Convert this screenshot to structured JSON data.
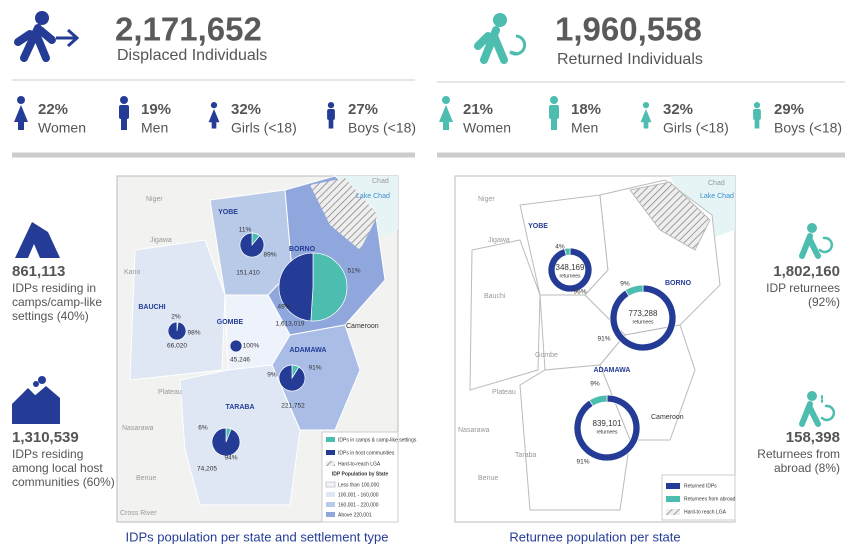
{
  "idps": {
    "total": "2,171,652",
    "label": "Displaced Individuals",
    "breakdown": [
      {
        "pct": "22%",
        "group": "Women"
      },
      {
        "pct": "19%",
        "group": "Men"
      },
      {
        "pct": "32%",
        "group": "Girls (<18)"
      },
      {
        "pct": "27%",
        "group": "Boys (<18)"
      }
    ],
    "camps": {
      "value": "861,113",
      "lines": [
        "IDPs residing in",
        "camps/camp-like",
        "settings (40%)"
      ]
    },
    "host": {
      "value": "1,310,539",
      "lines": [
        "IDPs residing",
        "among local host",
        "communities (60%)"
      ]
    },
    "map": {
      "caption": "IDPs population per state and settlement type",
      "states": [
        {
          "name": "YOBE",
          "total": "151,410",
          "values": [
            11,
            89
          ],
          "value_labels": [
            "11%",
            "89%"
          ]
        },
        {
          "name": "BORNO",
          "total": "1,613,019",
          "values": [
            51,
            49
          ],
          "value_labels": [
            "51%",
            "49%"
          ]
        },
        {
          "name": "BAUCHI",
          "total": "66,020",
          "values": [
            2,
            98
          ],
          "value_labels": [
            "2%",
            "98%"
          ]
        },
        {
          "name": "GOMBE",
          "total": "45,246",
          "values": [
            0,
            100
          ],
          "value_labels": [
            null,
            "100%"
          ]
        },
        {
          "name": "ADAMAWA",
          "total": "221,752",
          "values": [
            9,
            91
          ],
          "value_labels": [
            "9%",
            "91%"
          ]
        },
        {
          "name": "TARABA",
          "total": "74,205",
          "values": [
            6,
            94
          ],
          "value_labels": [
            "6%",
            "94%"
          ]
        }
      ],
      "places": [
        "Chad",
        "Lake Chad",
        "Niger",
        "Cameroon",
        "Jigawa",
        "Kano",
        "Plateau",
        "Nasarawa",
        "Benue",
        "Cross River"
      ],
      "legend": {
        "items": [
          "IDPs in camps & camp-like settings",
          "IDPs in host communities",
          "Hard-to-reach LGA"
        ],
        "heading": "IDP Population by State",
        "classes": [
          "Less than 100,000",
          "100,001 - 160,000",
          "160,001 - 220,000",
          "Above 220,001"
        ]
      }
    }
  },
  "returnees": {
    "total": "1,960,558",
    "label": "Returned Individuals",
    "breakdown": [
      {
        "pct": "21%",
        "group": "Women"
      },
      {
        "pct": "18%",
        "group": "Men"
      },
      {
        "pct": "32%",
        "group": "Girls (<18)"
      },
      {
        "pct": "29%",
        "group": "Boys (<18)"
      }
    ],
    "idp_returnees": {
      "value": "1,802,160",
      "lines": [
        "IDP returnees",
        "(92%)"
      ]
    },
    "abroad": {
      "value": "158,398",
      "lines": [
        "Returnees from",
        "abroad (8%)"
      ]
    },
    "map": {
      "caption": "Returnee population per state",
      "unit": "returnees",
      "states": [
        {
          "name": "YOBE",
          "total": "348,169",
          "values": [
            96,
            4
          ],
          "value_labels": [
            "96%",
            "4%"
          ]
        },
        {
          "name": "BORNO",
          "total": "773,288",
          "values": [
            91,
            9
          ],
          "value_labels": [
            "91%",
            "9%"
          ]
        },
        {
          "name": "ADAMAWA",
          "total": "839,101",
          "values": [
            91,
            9
          ],
          "value_labels": [
            "91%",
            "9%"
          ]
        }
      ],
      "places": [
        "Chad",
        "Lake Chad",
        "Niger",
        "Cameroon",
        "Jigawa",
        "Bauchi",
        "Gombe",
        "Plateau",
        "Nasarawa",
        "Taraba",
        "Benue"
      ],
      "legend": {
        "items": [
          "Returned IDPs",
          "Returnees from abroad",
          "Hard-to reach LGA"
        ]
      }
    }
  }
}
